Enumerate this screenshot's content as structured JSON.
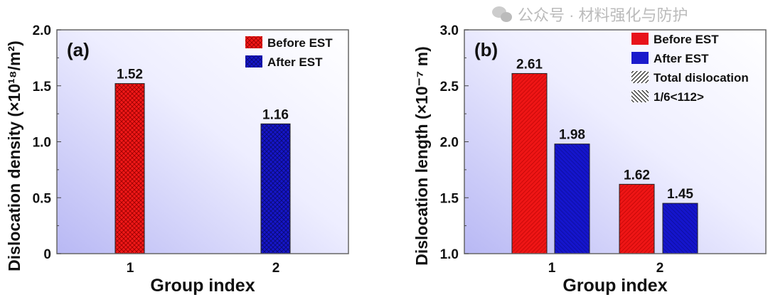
{
  "colors": {
    "before": "#e8131b",
    "after": "#1a1acc",
    "frame": "#666666"
  },
  "chart_data": [
    {
      "type": "bar",
      "panel_label": "(a)",
      "xlabel": "Group index",
      "ylabel": "Dislocation density (×10¹⁸/m²)",
      "ylim": [
        0,
        2.0
      ],
      "yticks": [
        "0",
        "0.5",
        "1.0",
        "1.5",
        "2.0"
      ],
      "ytick_values": [
        0,
        0.5,
        1.0,
        1.5,
        2.0
      ],
      "categories": [
        "1",
        "2"
      ],
      "legend": [
        "Before EST",
        "After EST"
      ],
      "legend_position": "top-right",
      "series": [
        {
          "name": "Before EST",
          "category": "1",
          "value": 1.52,
          "label": "1.52"
        },
        {
          "name": "After EST",
          "category": "2",
          "value": 1.16,
          "label": "1.16"
        }
      ]
    },
    {
      "type": "bar",
      "panel_label": "(b)",
      "xlabel": "Group index",
      "ylabel": "Dislocation length (×10⁻⁷ m)",
      "ylim": [
        1.0,
        3.0
      ],
      "yticks": [
        "1.0",
        "1.5",
        "2.0",
        "2.5",
        "3.0"
      ],
      "ytick_values": [
        1.0,
        1.5,
        2.0,
        2.5,
        3.0
      ],
      "categories": [
        "1",
        "2"
      ],
      "legend": [
        "Before EST",
        "After EST",
        "Total dislocation",
        "1/6<112>"
      ],
      "legend_position": "top-right",
      "series": [
        {
          "name": "Before EST",
          "values": [
            2.61,
            1.62
          ],
          "labels": [
            "2.61",
            "1.62"
          ]
        },
        {
          "name": "After EST",
          "values": [
            1.98,
            1.45
          ],
          "labels": [
            "1.98",
            "1.45"
          ]
        }
      ]
    }
  ],
  "watermark": "公众号 · 材料强化与防护"
}
